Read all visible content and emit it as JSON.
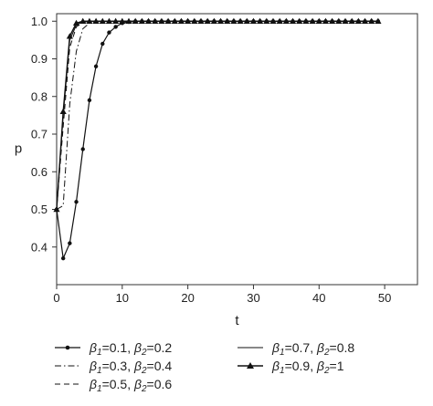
{
  "chart_data": {
    "type": "line",
    "xlabel": "t",
    "ylabel": "p",
    "xlim": [
      0,
      55
    ],
    "ylim": [
      0.3,
      1.02
    ],
    "xticks": [
      0,
      10,
      20,
      30,
      40,
      50
    ],
    "yticks": [
      0.4,
      0.5,
      0.6,
      0.7,
      0.8,
      0.9,
      1.0
    ],
    "ytick_labels": [
      "0.4",
      "0.5",
      "0.6",
      "0.7",
      "0.8",
      "0.9",
      "1.0"
    ],
    "grid": false,
    "legend_position": "bottom",
    "series": [
      {
        "name": "β1=0.1, β2=0.2",
        "label_parts": [
          "β",
          "1",
          "=0.1, ",
          "β",
          "2",
          "=0.2"
        ],
        "style": "solid-dot",
        "x": [
          0,
          1,
          2,
          3,
          4,
          5,
          6,
          7,
          8,
          9,
          10,
          11,
          12,
          13,
          14,
          15,
          16,
          17,
          18,
          19,
          20,
          21,
          22,
          23,
          24,
          25,
          26,
          27,
          28,
          29,
          30,
          31,
          32,
          33,
          34,
          35,
          36,
          37,
          38,
          39,
          40,
          41,
          42,
          43,
          44,
          45,
          46,
          47,
          48,
          49
        ],
        "y": [
          0.5,
          0.37,
          0.41,
          0.52,
          0.66,
          0.79,
          0.88,
          0.94,
          0.97,
          0.985,
          0.995,
          0.998,
          1,
          1,
          1,
          1,
          1,
          1,
          1,
          1,
          1,
          1,
          1,
          1,
          1,
          1,
          1,
          1,
          1,
          1,
          1,
          1,
          1,
          1,
          1,
          1,
          1,
          1,
          1,
          1,
          1,
          1,
          1,
          1,
          1,
          1,
          1,
          1,
          1,
          1
        ]
      },
      {
        "name": "β1=0.3, β2=0.4",
        "label_parts": [
          "β",
          "1",
          "=0.3, ",
          "β",
          "2",
          "=0.4"
        ],
        "style": "dashdot",
        "x": [
          0,
          1,
          2,
          3,
          4,
          5,
          6,
          7,
          8,
          9,
          10,
          11,
          12,
          13,
          14,
          15,
          16,
          17,
          18,
          19,
          20,
          21,
          22,
          23,
          24,
          25,
          26,
          27,
          28,
          29,
          30,
          31,
          32,
          33,
          34,
          35,
          36,
          37,
          38,
          39,
          40,
          41,
          42,
          43,
          44,
          45,
          46,
          47,
          48,
          49
        ],
        "y": [
          0.5,
          0.51,
          0.78,
          0.92,
          0.98,
          0.995,
          1,
          1,
          1,
          1,
          1,
          1,
          1,
          1,
          1,
          1,
          1,
          1,
          1,
          1,
          1,
          1,
          1,
          1,
          1,
          1,
          1,
          1,
          1,
          1,
          1,
          1,
          1,
          1,
          1,
          1,
          1,
          1,
          1,
          1,
          1,
          1,
          1,
          1,
          1,
          1,
          1,
          1,
          1,
          1
        ]
      },
      {
        "name": "β1=0.5, β2=0.6",
        "label_parts": [
          "β",
          "1",
          "=0.5, ",
          "β",
          "2",
          "=0.6"
        ],
        "style": "dashed",
        "x": [
          0,
          1,
          2,
          3,
          4,
          5,
          6,
          7,
          8,
          9,
          10,
          11,
          12,
          13,
          14,
          15,
          16,
          17,
          18,
          19,
          20,
          21,
          22,
          23,
          24,
          25,
          26,
          27,
          28,
          29,
          30,
          31,
          32,
          33,
          34,
          35,
          36,
          37,
          38,
          39,
          40,
          41,
          42,
          43,
          44,
          45,
          46,
          47,
          48,
          49
        ],
        "y": [
          0.5,
          0.72,
          0.93,
          0.985,
          0.997,
          1,
          1,
          1,
          1,
          1,
          1,
          1,
          1,
          1,
          1,
          1,
          1,
          1,
          1,
          1,
          1,
          1,
          1,
          1,
          1,
          1,
          1,
          1,
          1,
          1,
          1,
          1,
          1,
          1,
          1,
          1,
          1,
          1,
          1,
          1,
          1,
          1,
          1,
          1,
          1,
          1,
          1,
          1,
          1,
          1
        ]
      },
      {
        "name": "β1=0.7, β2=0.8",
        "label_parts": [
          "β",
          "1",
          "=0.7, ",
          "β",
          "2",
          "=0.8"
        ],
        "style": "solid",
        "x": [
          0,
          1,
          2,
          3,
          4,
          5,
          6,
          7,
          8,
          9,
          10,
          11,
          12,
          13,
          14,
          15,
          16,
          17,
          18,
          19,
          20,
          21,
          22,
          23,
          24,
          25,
          26,
          27,
          28,
          29,
          30,
          31,
          32,
          33,
          34,
          35,
          36,
          37,
          38,
          39,
          40,
          41,
          42,
          43,
          44,
          45,
          46,
          47,
          48,
          49
        ],
        "y": [
          0.5,
          0.75,
          0.95,
          0.99,
          1,
          1,
          1,
          1,
          1,
          1,
          1,
          1,
          1,
          1,
          1,
          1,
          1,
          1,
          1,
          1,
          1,
          1,
          1,
          1,
          1,
          1,
          1,
          1,
          1,
          1,
          1,
          1,
          1,
          1,
          1,
          1,
          1,
          1,
          1,
          1,
          1,
          1,
          1,
          1,
          1,
          1,
          1,
          1,
          1,
          1
        ]
      },
      {
        "name": "β1=0.9, β2=1",
        "label_parts": [
          "β",
          "1",
          "=0.9, ",
          "β",
          "2",
          "=1"
        ],
        "style": "solid-triangle",
        "x": [
          0,
          1,
          2,
          3,
          4,
          5,
          6,
          7,
          8,
          9,
          10,
          11,
          12,
          13,
          14,
          15,
          16,
          17,
          18,
          19,
          20,
          21,
          22,
          23,
          24,
          25,
          26,
          27,
          28,
          29,
          30,
          31,
          32,
          33,
          34,
          35,
          36,
          37,
          38,
          39,
          40,
          41,
          42,
          43,
          44,
          45,
          46,
          47,
          48,
          49
        ],
        "y": [
          0.5,
          0.76,
          0.96,
          0.995,
          1,
          1,
          1,
          1,
          1,
          1,
          1,
          1,
          1,
          1,
          1,
          1,
          1,
          1,
          1,
          1,
          1,
          1,
          1,
          1,
          1,
          1,
          1,
          1,
          1,
          1,
          1,
          1,
          1,
          1,
          1,
          1,
          1,
          1,
          1,
          1,
          1,
          1,
          1,
          1,
          1,
          1,
          1,
          1,
          1,
          1
        ]
      }
    ]
  }
}
